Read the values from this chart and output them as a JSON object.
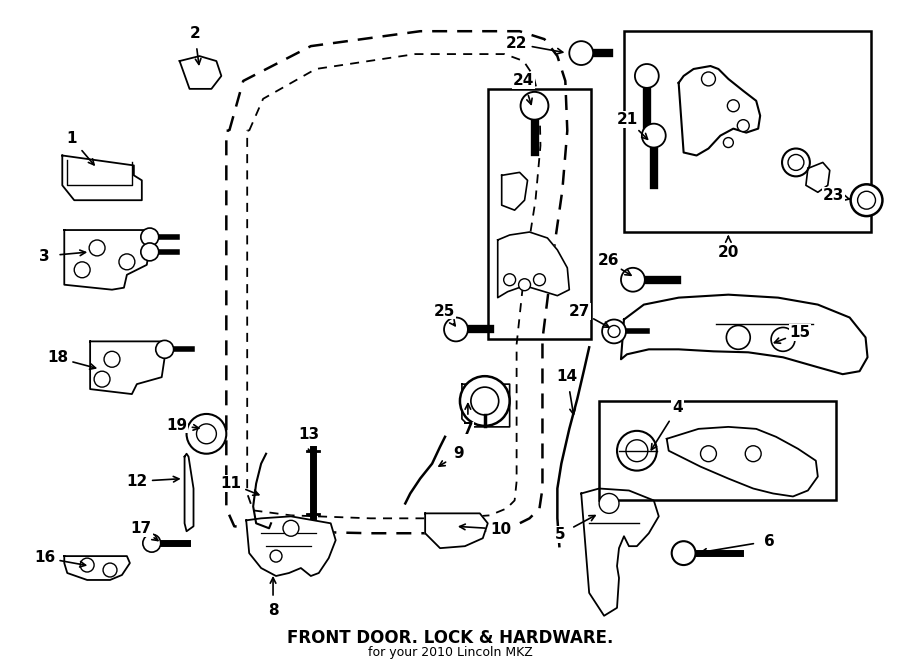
{
  "title": "FRONT DOOR. LOCK & HARDWARE.",
  "subtitle": "for your 2010 Lincoln MKZ",
  "bg_color": "#ffffff",
  "line_color": "#000000",
  "fig_width": 9.0,
  "fig_height": 6.62,
  "dpi": 100
}
